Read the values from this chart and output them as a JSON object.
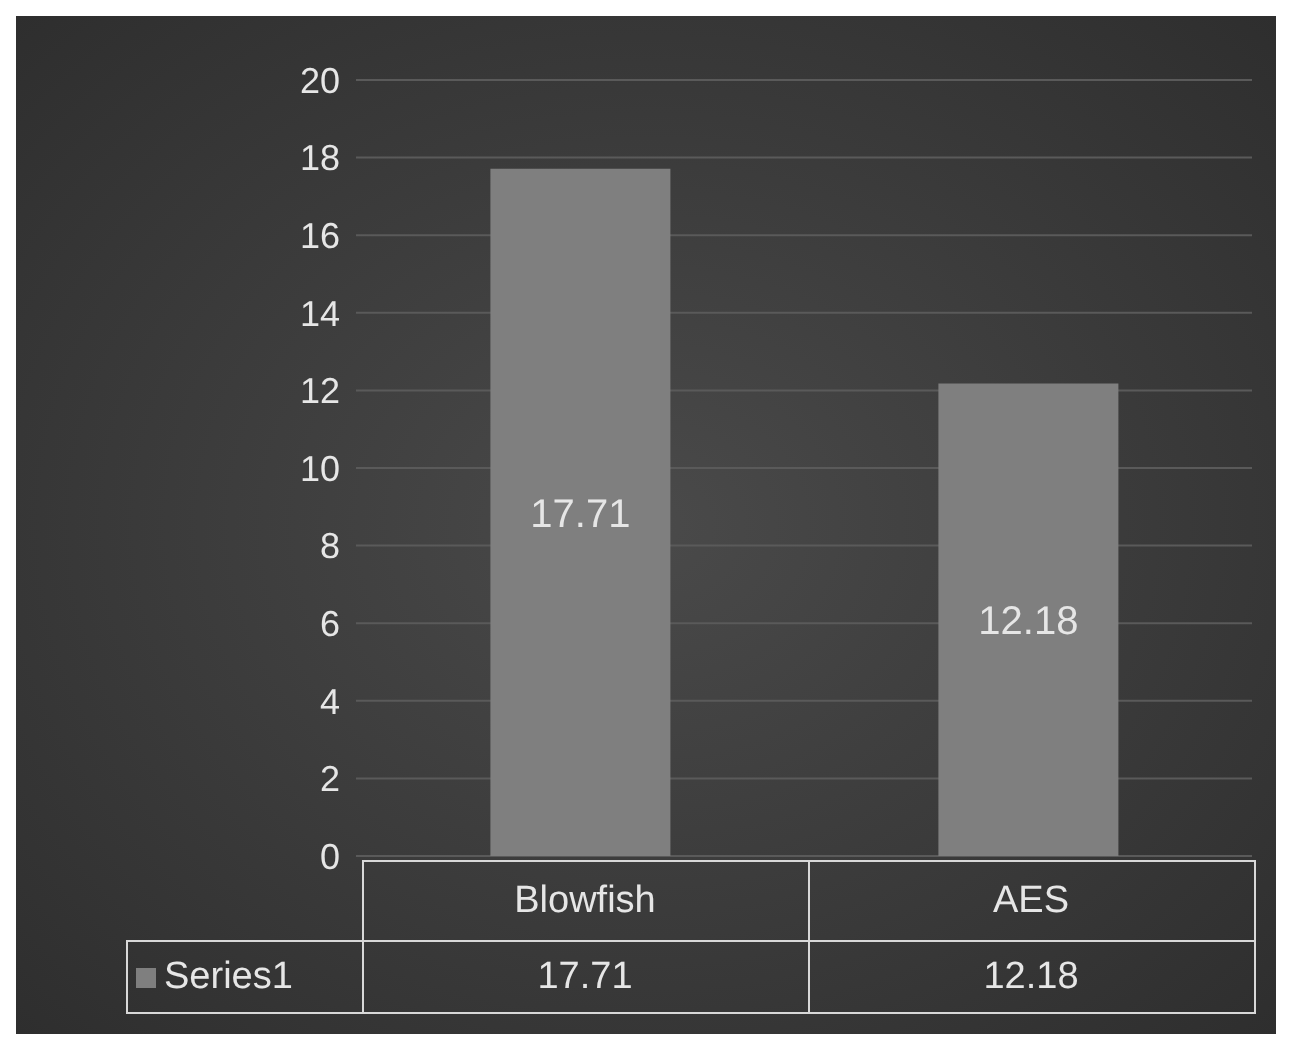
{
  "chart_data": {
    "type": "bar",
    "categories": [
      "Blowfish",
      "AES"
    ],
    "series": [
      {
        "name": "Series1",
        "color": "#7f7f7f",
        "values": [
          17.71,
          12.18
        ]
      }
    ],
    "value_labels": [
      "17.71",
      "12.18"
    ],
    "ylim": [
      0,
      20
    ],
    "yticks": [
      0,
      2,
      4,
      6,
      8,
      10,
      12,
      14,
      16,
      18,
      20
    ],
    "grid": "y",
    "data_labels": true,
    "legend": "bottom"
  }
}
